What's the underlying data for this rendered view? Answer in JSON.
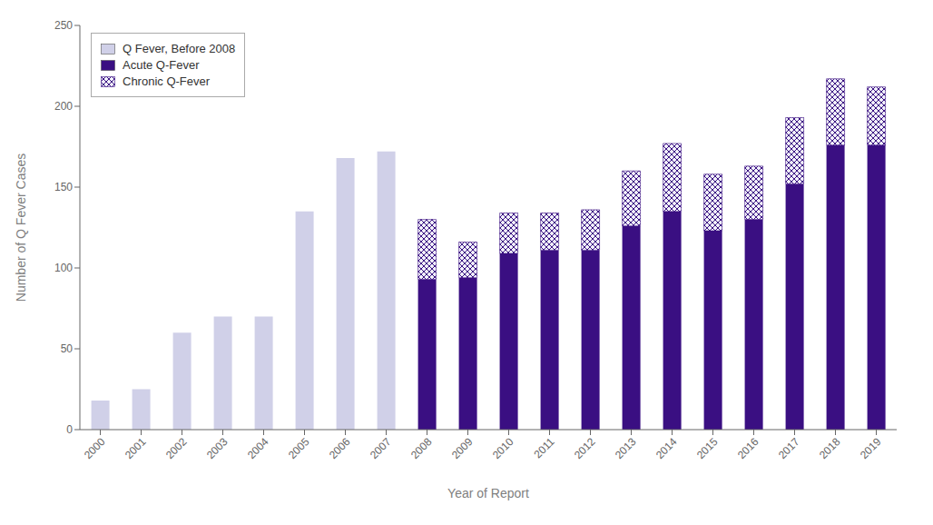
{
  "chart_data": {
    "type": "bar",
    "stacked": true,
    "xlabel": "Year of Report",
    "ylabel": "Number of Q Fever Cases",
    "categories": [
      "2000",
      "2001",
      "2002",
      "2003",
      "2004",
      "2005",
      "2006",
      "2007",
      "2008",
      "2009",
      "2010",
      "2011",
      "2012",
      "2013",
      "2014",
      "2015",
      "2016",
      "2017",
      "2018",
      "2019"
    ],
    "series": [
      {
        "name": "Q Fever, Before 2008",
        "color": "#d0d0e8",
        "values": [
          18,
          25,
          60,
          70,
          70,
          135,
          168,
          172,
          0,
          0,
          0,
          0,
          0,
          0,
          0,
          0,
          0,
          0,
          0,
          0
        ]
      },
      {
        "name": "Acute Q-Fever",
        "color": "#3a0f82",
        "values": [
          0,
          0,
          0,
          0,
          0,
          0,
          0,
          0,
          93,
          94,
          109,
          111,
          111,
          126,
          135,
          123,
          130,
          152,
          176,
          176
        ]
      },
      {
        "name": "Chronic Q-Fever",
        "color": "#3a0f82",
        "values": [
          0,
          0,
          0,
          0,
          0,
          0,
          0,
          0,
          37,
          22,
          25,
          23,
          25,
          34,
          42,
          35,
          33,
          41,
          41,
          36
        ]
      }
    ],
    "ylim": [
      0,
      250
    ],
    "yticks": [
      0,
      50,
      100,
      150,
      200,
      250
    ],
    "grid": false,
    "legend": "upper left"
  }
}
